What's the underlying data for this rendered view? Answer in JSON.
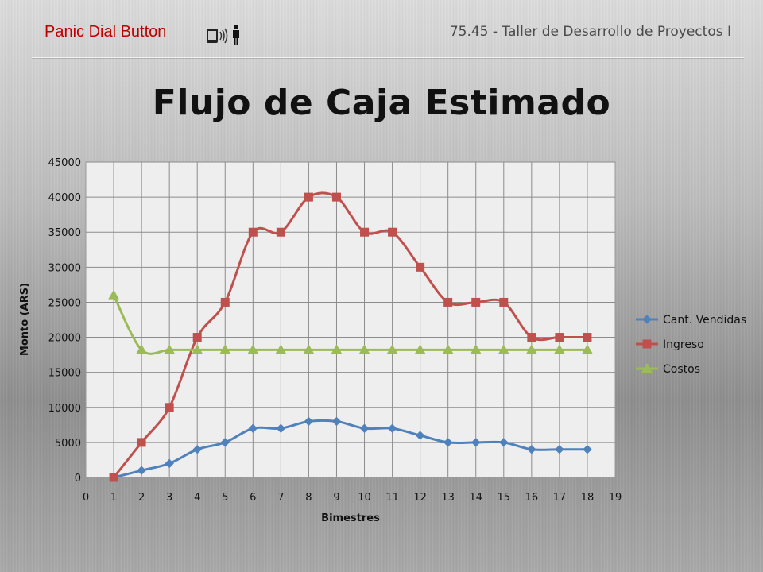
{
  "header": {
    "brand": "Panic Dial Button",
    "course": "75.45 - Taller de Desarrollo de Proyectos I"
  },
  "icons": {
    "brand_icon": "phone-person-icon"
  },
  "colors": {
    "brand": "#c00000",
    "cant_vendidas": "#4f81bd",
    "ingreso": "#c0504d",
    "costos": "#9bbb59"
  },
  "chart_data": {
    "type": "line",
    "title": "Flujo de Caja Estimado",
    "xlabel": "Bimestres",
    "ylabel": "Monto (ARS)",
    "xlim": [
      0,
      19
    ],
    "ylim": [
      0,
      45000
    ],
    "x_ticks": [
      0,
      1,
      2,
      3,
      4,
      5,
      6,
      7,
      8,
      9,
      10,
      11,
      12,
      13,
      14,
      15,
      16,
      17,
      18,
      19
    ],
    "y_ticks": [
      0,
      5000,
      10000,
      15000,
      20000,
      25000,
      30000,
      35000,
      40000,
      45000
    ],
    "grid": true,
    "legend_position": "right",
    "x": [
      1,
      2,
      3,
      4,
      5,
      6,
      7,
      8,
      9,
      10,
      11,
      12,
      13,
      14,
      15,
      16,
      17,
      18
    ],
    "series": [
      {
        "name": "Cant. Vendidas",
        "marker": "diamond",
        "values": [
          0,
          1000,
          2000,
          4000,
          5000,
          7000,
          7000,
          8000,
          8000,
          7000,
          7000,
          6000,
          5000,
          5000,
          5000,
          4000,
          4000,
          4000
        ]
      },
      {
        "name": "Ingreso",
        "marker": "square",
        "values": [
          0,
          5000,
          10000,
          20000,
          25000,
          35000,
          35000,
          40000,
          40000,
          35000,
          35000,
          30000,
          25000,
          25000,
          25000,
          20000,
          20000,
          20000
        ]
      },
      {
        "name": "Costos",
        "marker": "triangle",
        "values": [
          26000,
          18200,
          18200,
          18200,
          18200,
          18200,
          18200,
          18200,
          18200,
          18200,
          18200,
          18200,
          18200,
          18200,
          18200,
          18200,
          18200,
          18200
        ]
      }
    ]
  }
}
